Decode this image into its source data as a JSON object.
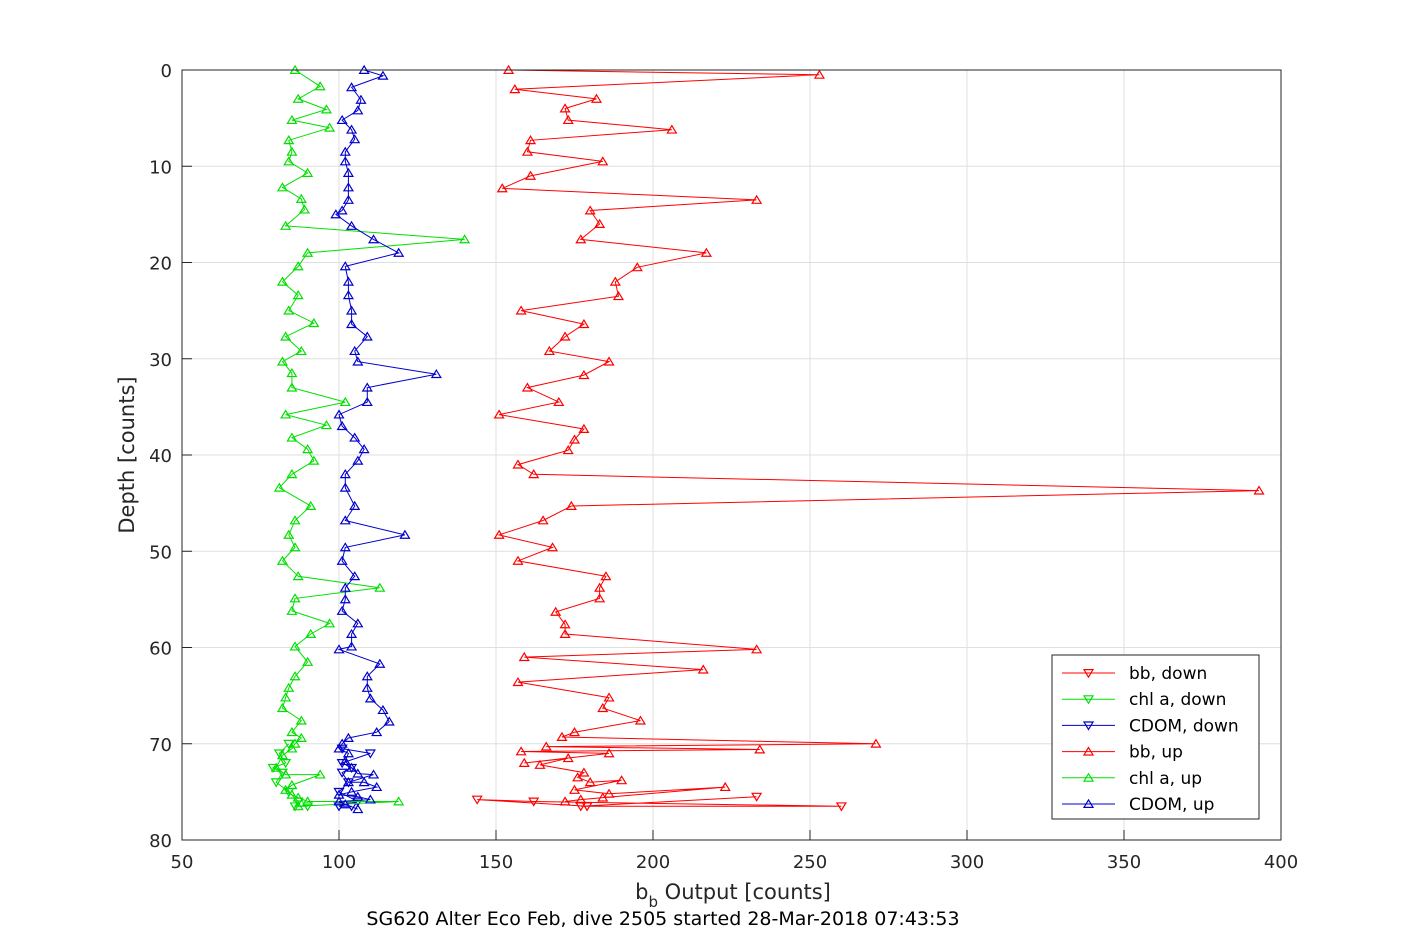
{
  "chart_data": {
    "type": "line",
    "xlabel": "b",
    "xlabel_sub": "b",
    "xlabel_rest": " Output [counts]",
    "ylabel": "Depth [counts]",
    "caption": "SG620 Alter Eco Feb, dive 2505 started 28-Mar-2018 07:43:53",
    "xlim": [
      50,
      400
    ],
    "ylim": [
      0,
      80
    ],
    "y_reversed": true,
    "xticks": [
      50,
      100,
      150,
      200,
      250,
      300,
      350,
      400
    ],
    "yticks": [
      0,
      10,
      20,
      30,
      40,
      50,
      60,
      70,
      80
    ],
    "grid": true,
    "legend_position": "bottom-right",
    "series": [
      {
        "name": "bb, down",
        "color": "#ff0000",
        "marker": "triangle-down",
        "points": [
          [
            233,
            75.5
          ],
          [
            177,
            76.5
          ],
          [
            260,
            76.5
          ],
          [
            162,
            76
          ],
          [
            144,
            75.8
          ],
          [
            179,
            76.5
          ]
        ]
      },
      {
        "name": "chl a, down",
        "color": "#00e000",
        "marker": "triangle-down",
        "points": [
          [
            90,
            76.5
          ],
          [
            86,
            76.5
          ],
          [
            87,
            76
          ],
          [
            84,
            75
          ],
          [
            80,
            74
          ],
          [
            82,
            73
          ],
          [
            79,
            72.5
          ],
          [
            83,
            72
          ],
          [
            81,
            71
          ],
          [
            84,
            70
          ]
        ]
      },
      {
        "name": "CDOM, down",
        "color": "#0000cc",
        "marker": "triangle-down",
        "points": [
          [
            104,
            76.5
          ],
          [
            100,
            76.5
          ],
          [
            106,
            76
          ],
          [
            100,
            75
          ],
          [
            103,
            74
          ],
          [
            101,
            73
          ],
          [
            104,
            72.5
          ],
          [
            101,
            72
          ],
          [
            110,
            71
          ],
          [
            101,
            70.5
          ]
        ]
      },
      {
        "name": "bb, up",
        "color": "#ff0000",
        "marker": "triangle-up",
        "points": [
          [
            154,
            0
          ],
          [
            253,
            0.5
          ],
          [
            156,
            2
          ],
          [
            182,
            3
          ],
          [
            172,
            4
          ],
          [
            173,
            5.2
          ],
          [
            206,
            6.2
          ],
          [
            161,
            7.3
          ],
          [
            160,
            8.5
          ],
          [
            184,
            9.5
          ],
          [
            161,
            11
          ],
          [
            152,
            12.3
          ],
          [
            233,
            13.5
          ],
          [
            180,
            14.6
          ],
          [
            183,
            16
          ],
          [
            177,
            17.6
          ],
          [
            217,
            19
          ],
          [
            195,
            20.5
          ],
          [
            188,
            22
          ],
          [
            189,
            23.5
          ],
          [
            158,
            25
          ],
          [
            178,
            26.4
          ],
          [
            172,
            27.7
          ],
          [
            167,
            29.2
          ],
          [
            186,
            30.3
          ],
          [
            178,
            31.7
          ],
          [
            160,
            33
          ],
          [
            170,
            34.5
          ],
          [
            151,
            35.8
          ],
          [
            178,
            37.3
          ],
          [
            175,
            38.4
          ],
          [
            173,
            39.5
          ],
          [
            157,
            41
          ],
          [
            162,
            42
          ],
          [
            393,
            43.7
          ],
          [
            174,
            45.3
          ],
          [
            165,
            46.8
          ],
          [
            151,
            48.3
          ],
          [
            168,
            49.6
          ],
          [
            157,
            51
          ],
          [
            185,
            52.6
          ],
          [
            183,
            53.8
          ],
          [
            183,
            54.9
          ],
          [
            169,
            56.3
          ],
          [
            172,
            57.6
          ],
          [
            172,
            58.6
          ],
          [
            233,
            60.2
          ],
          [
            159,
            61
          ],
          [
            216,
            62.3
          ],
          [
            157,
            63.6
          ],
          [
            186,
            65.2
          ],
          [
            184,
            66.3
          ],
          [
            196,
            67.6
          ],
          [
            175,
            68.8
          ],
          [
            171,
            69.3
          ],
          [
            271,
            70
          ],
          [
            166,
            70.3
          ],
          [
            234,
            70.6
          ],
          [
            158,
            70.8
          ],
          [
            186,
            71
          ],
          [
            159,
            72
          ],
          [
            173,
            71.5
          ],
          [
            164,
            72.2
          ],
          [
            178,
            73
          ],
          [
            176,
            73.5
          ],
          [
            180,
            74
          ],
          [
            190,
            73.8
          ],
          [
            175,
            74.8
          ],
          [
            186,
            75.2
          ],
          [
            223,
            74.5
          ],
          [
            184,
            75.6
          ],
          [
            177,
            75.8
          ],
          [
            172,
            76
          ]
        ]
      },
      {
        "name": "chl a, up",
        "color": "#00e000",
        "marker": "triangle-up",
        "points": [
          [
            86,
            0
          ],
          [
            94,
            1.7
          ],
          [
            87,
            3
          ],
          [
            96,
            4.1
          ],
          [
            85,
            5.2
          ],
          [
            97,
            6
          ],
          [
            84,
            7.3
          ],
          [
            85,
            8.5
          ],
          [
            84,
            9.5
          ],
          [
            90,
            10.7
          ],
          [
            82,
            12.2
          ],
          [
            88,
            13.4
          ],
          [
            89,
            14.5
          ],
          [
            83,
            16.2
          ],
          [
            140,
            17.6
          ],
          [
            90,
            19
          ],
          [
            87,
            20.4
          ],
          [
            82,
            22
          ],
          [
            87,
            23.4
          ],
          [
            84,
            25
          ],
          [
            92,
            26.3
          ],
          [
            83,
            27.7
          ],
          [
            88,
            29.2
          ],
          [
            82,
            30.3
          ],
          [
            85,
            31.5
          ],
          [
            85,
            33
          ],
          [
            102,
            34.5
          ],
          [
            83,
            35.8
          ],
          [
            96,
            36.9
          ],
          [
            85,
            38.2
          ],
          [
            90,
            39.4
          ],
          [
            92,
            40.6
          ],
          [
            85,
            42
          ],
          [
            81,
            43.4
          ],
          [
            91,
            45.3
          ],
          [
            86,
            46.8
          ],
          [
            84,
            48.3
          ],
          [
            86,
            49.6
          ],
          [
            82,
            51
          ],
          [
            87,
            52.6
          ],
          [
            113,
            53.8
          ],
          [
            86,
            54.9
          ],
          [
            85,
            56.2
          ],
          [
            97,
            57.5
          ],
          [
            91,
            58.6
          ],
          [
            86,
            59.9
          ],
          [
            90,
            61.5
          ],
          [
            86,
            63
          ],
          [
            84,
            64.2
          ],
          [
            83,
            65.2
          ],
          [
            82,
            66.3
          ],
          [
            88,
            67.6
          ],
          [
            85,
            68.8
          ],
          [
            88,
            69.4
          ],
          [
            86,
            70
          ],
          [
            85,
            70.5
          ],
          [
            82,
            71.2
          ],
          [
            80,
            72.5
          ],
          [
            83,
            73.2
          ],
          [
            94,
            73.2
          ],
          [
            85,
            74.3
          ],
          [
            83,
            74.8
          ],
          [
            85,
            75.3
          ],
          [
            87,
            75.6
          ],
          [
            90,
            76
          ],
          [
            119,
            76
          ],
          [
            87,
            76.5
          ]
        ]
      },
      {
        "name": "CDOM, up",
        "color": "#0000cc",
        "marker": "triangle-up",
        "points": [
          [
            108,
            0
          ],
          [
            114,
            0.6
          ],
          [
            104,
            1.8
          ],
          [
            107,
            3.1
          ],
          [
            106,
            4.2
          ],
          [
            101,
            5.2
          ],
          [
            104,
            6.2
          ],
          [
            105,
            7.2
          ],
          [
            102,
            8.5
          ],
          [
            102,
            9.5
          ],
          [
            103,
            10.7
          ],
          [
            103,
            12.2
          ],
          [
            103,
            13.5
          ],
          [
            101,
            14.6
          ],
          [
            99,
            15
          ],
          [
            104,
            16.2
          ],
          [
            111,
            17.6
          ],
          [
            119,
            19
          ],
          [
            102,
            20.4
          ],
          [
            103,
            22
          ],
          [
            103,
            23.4
          ],
          [
            104,
            25
          ],
          [
            104,
            26.4
          ],
          [
            109,
            27.7
          ],
          [
            105,
            29.2
          ],
          [
            106,
            30.3
          ],
          [
            131,
            31.6
          ],
          [
            109,
            33
          ],
          [
            109,
            34.5
          ],
          [
            100,
            35.8
          ],
          [
            101,
            37
          ],
          [
            105,
            38.2
          ],
          [
            108,
            39.4
          ],
          [
            106,
            40.6
          ],
          [
            102,
            42
          ],
          [
            102,
            43.4
          ],
          [
            105,
            45.3
          ],
          [
            102,
            46.8
          ],
          [
            121,
            48.3
          ],
          [
            102,
            49.6
          ],
          [
            101,
            51
          ],
          [
            105,
            52.6
          ],
          [
            102,
            53.8
          ],
          [
            102,
            55
          ],
          [
            101,
            56.2
          ],
          [
            106,
            57.5
          ],
          [
            104,
            58.6
          ],
          [
            104,
            59.9
          ],
          [
            100,
            60.2
          ],
          [
            113,
            61.7
          ],
          [
            109,
            63
          ],
          [
            109,
            64.2
          ],
          [
            110,
            65.3
          ],
          [
            114,
            66.5
          ],
          [
            116,
            67.7
          ],
          [
            112,
            68.8
          ],
          [
            103,
            69.4
          ],
          [
            101,
            70
          ],
          [
            100,
            70.5
          ],
          [
            103,
            71
          ],
          [
            102,
            71.8
          ],
          [
            104,
            72.5
          ],
          [
            106,
            73.1
          ],
          [
            111,
            73.2
          ],
          [
            103,
            74
          ],
          [
            108,
            74
          ],
          [
            112,
            74.5
          ],
          [
            104,
            75
          ],
          [
            100,
            75.3
          ],
          [
            106,
            75.5
          ],
          [
            110,
            75.8
          ],
          [
            100,
            76
          ],
          [
            102,
            76.3
          ],
          [
            106,
            76.8
          ]
        ]
      }
    ]
  }
}
